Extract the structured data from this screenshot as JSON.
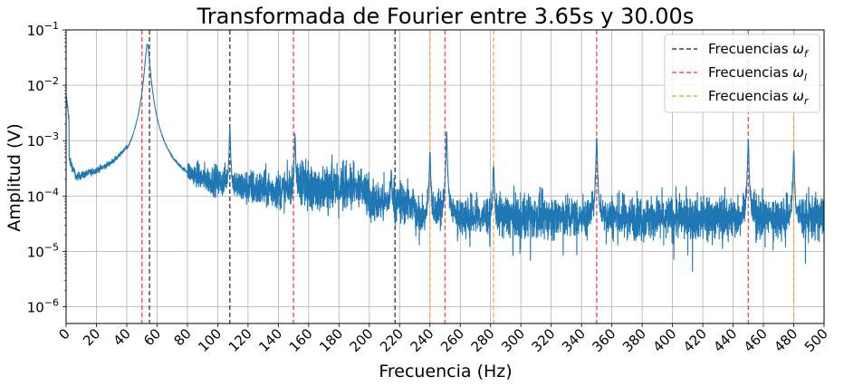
{
  "chart_data": {
    "type": "line",
    "title": "Transformada de Fourier entre 3.65s y 30.00s",
    "xlabel": "Frecuencia (Hz)",
    "ylabel": "Amplitud (V)",
    "xlim": [
      0,
      500
    ],
    "ylim": [
      5e-07,
      0.1
    ],
    "yscale": "log",
    "grid": true,
    "legend_position": "top-right",
    "x_ticks": [
      "0",
      "20",
      "40",
      "60",
      "80",
      "100",
      "120",
      "140",
      "160",
      "180",
      "200",
      "220",
      "240",
      "260",
      "280",
      "300",
      "320",
      "340",
      "360",
      "380",
      "400",
      "420",
      "440",
      "460",
      "480",
      "500"
    ],
    "y_ticks": [
      {
        "value": 1e-06,
        "base": "10",
        "exp": "−6"
      },
      {
        "value": 1e-05,
        "base": "10",
        "exp": "−5"
      },
      {
        "value": 0.0001,
        "base": "10",
        "exp": "−4"
      },
      {
        "value": 0.001,
        "base": "10",
        "exp": "−3"
      },
      {
        "value": 0.01,
        "base": "10",
        "exp": "−2"
      },
      {
        "value": 0.1,
        "base": "10",
        "exp": "−1"
      }
    ],
    "series": [
      {
        "name": "",
        "color": "#1f77b4",
        "kind": "spectrum",
        "peaks": [
          {
            "x": 53.6,
            "y": 0.055
          },
          {
            "x": 108,
            "y": 0.0016
          },
          {
            "x": 151,
            "y": 0.0011
          },
          {
            "x": 214.5,
            "y": 0.0002
          },
          {
            "x": 240,
            "y": 0.0006
          },
          {
            "x": 251,
            "y": 0.0014
          },
          {
            "x": 282,
            "y": 0.0003
          },
          {
            "x": 350,
            "y": 0.0011
          },
          {
            "x": 450,
            "y": 0.001
          },
          {
            "x": 480,
            "y": 0.0006
          }
        ]
      }
    ],
    "vlines": [
      {
        "group": "f",
        "color": "#444444",
        "x": [
          55,
          108,
          217
        ]
      },
      {
        "group": "l",
        "color": "#ff4d4d",
        "x": [
          50,
          150,
          250,
          350,
          450
        ]
      },
      {
        "group": "r",
        "color": "#ffa64d",
        "x": [
          240,
          282,
          480
        ]
      }
    ],
    "legend": [
      {
        "label": "Frecuencias ",
        "sym": "ω",
        "sub": "f",
        "color": "#444444"
      },
      {
        "label": "Frecuencias ",
        "sym": "ω",
        "sub": "l",
        "color": "#ff4d4d"
      },
      {
        "label": "Frecuencias ",
        "sym": "ω",
        "sub": "r",
        "color": "#ffa64d"
      }
    ]
  }
}
